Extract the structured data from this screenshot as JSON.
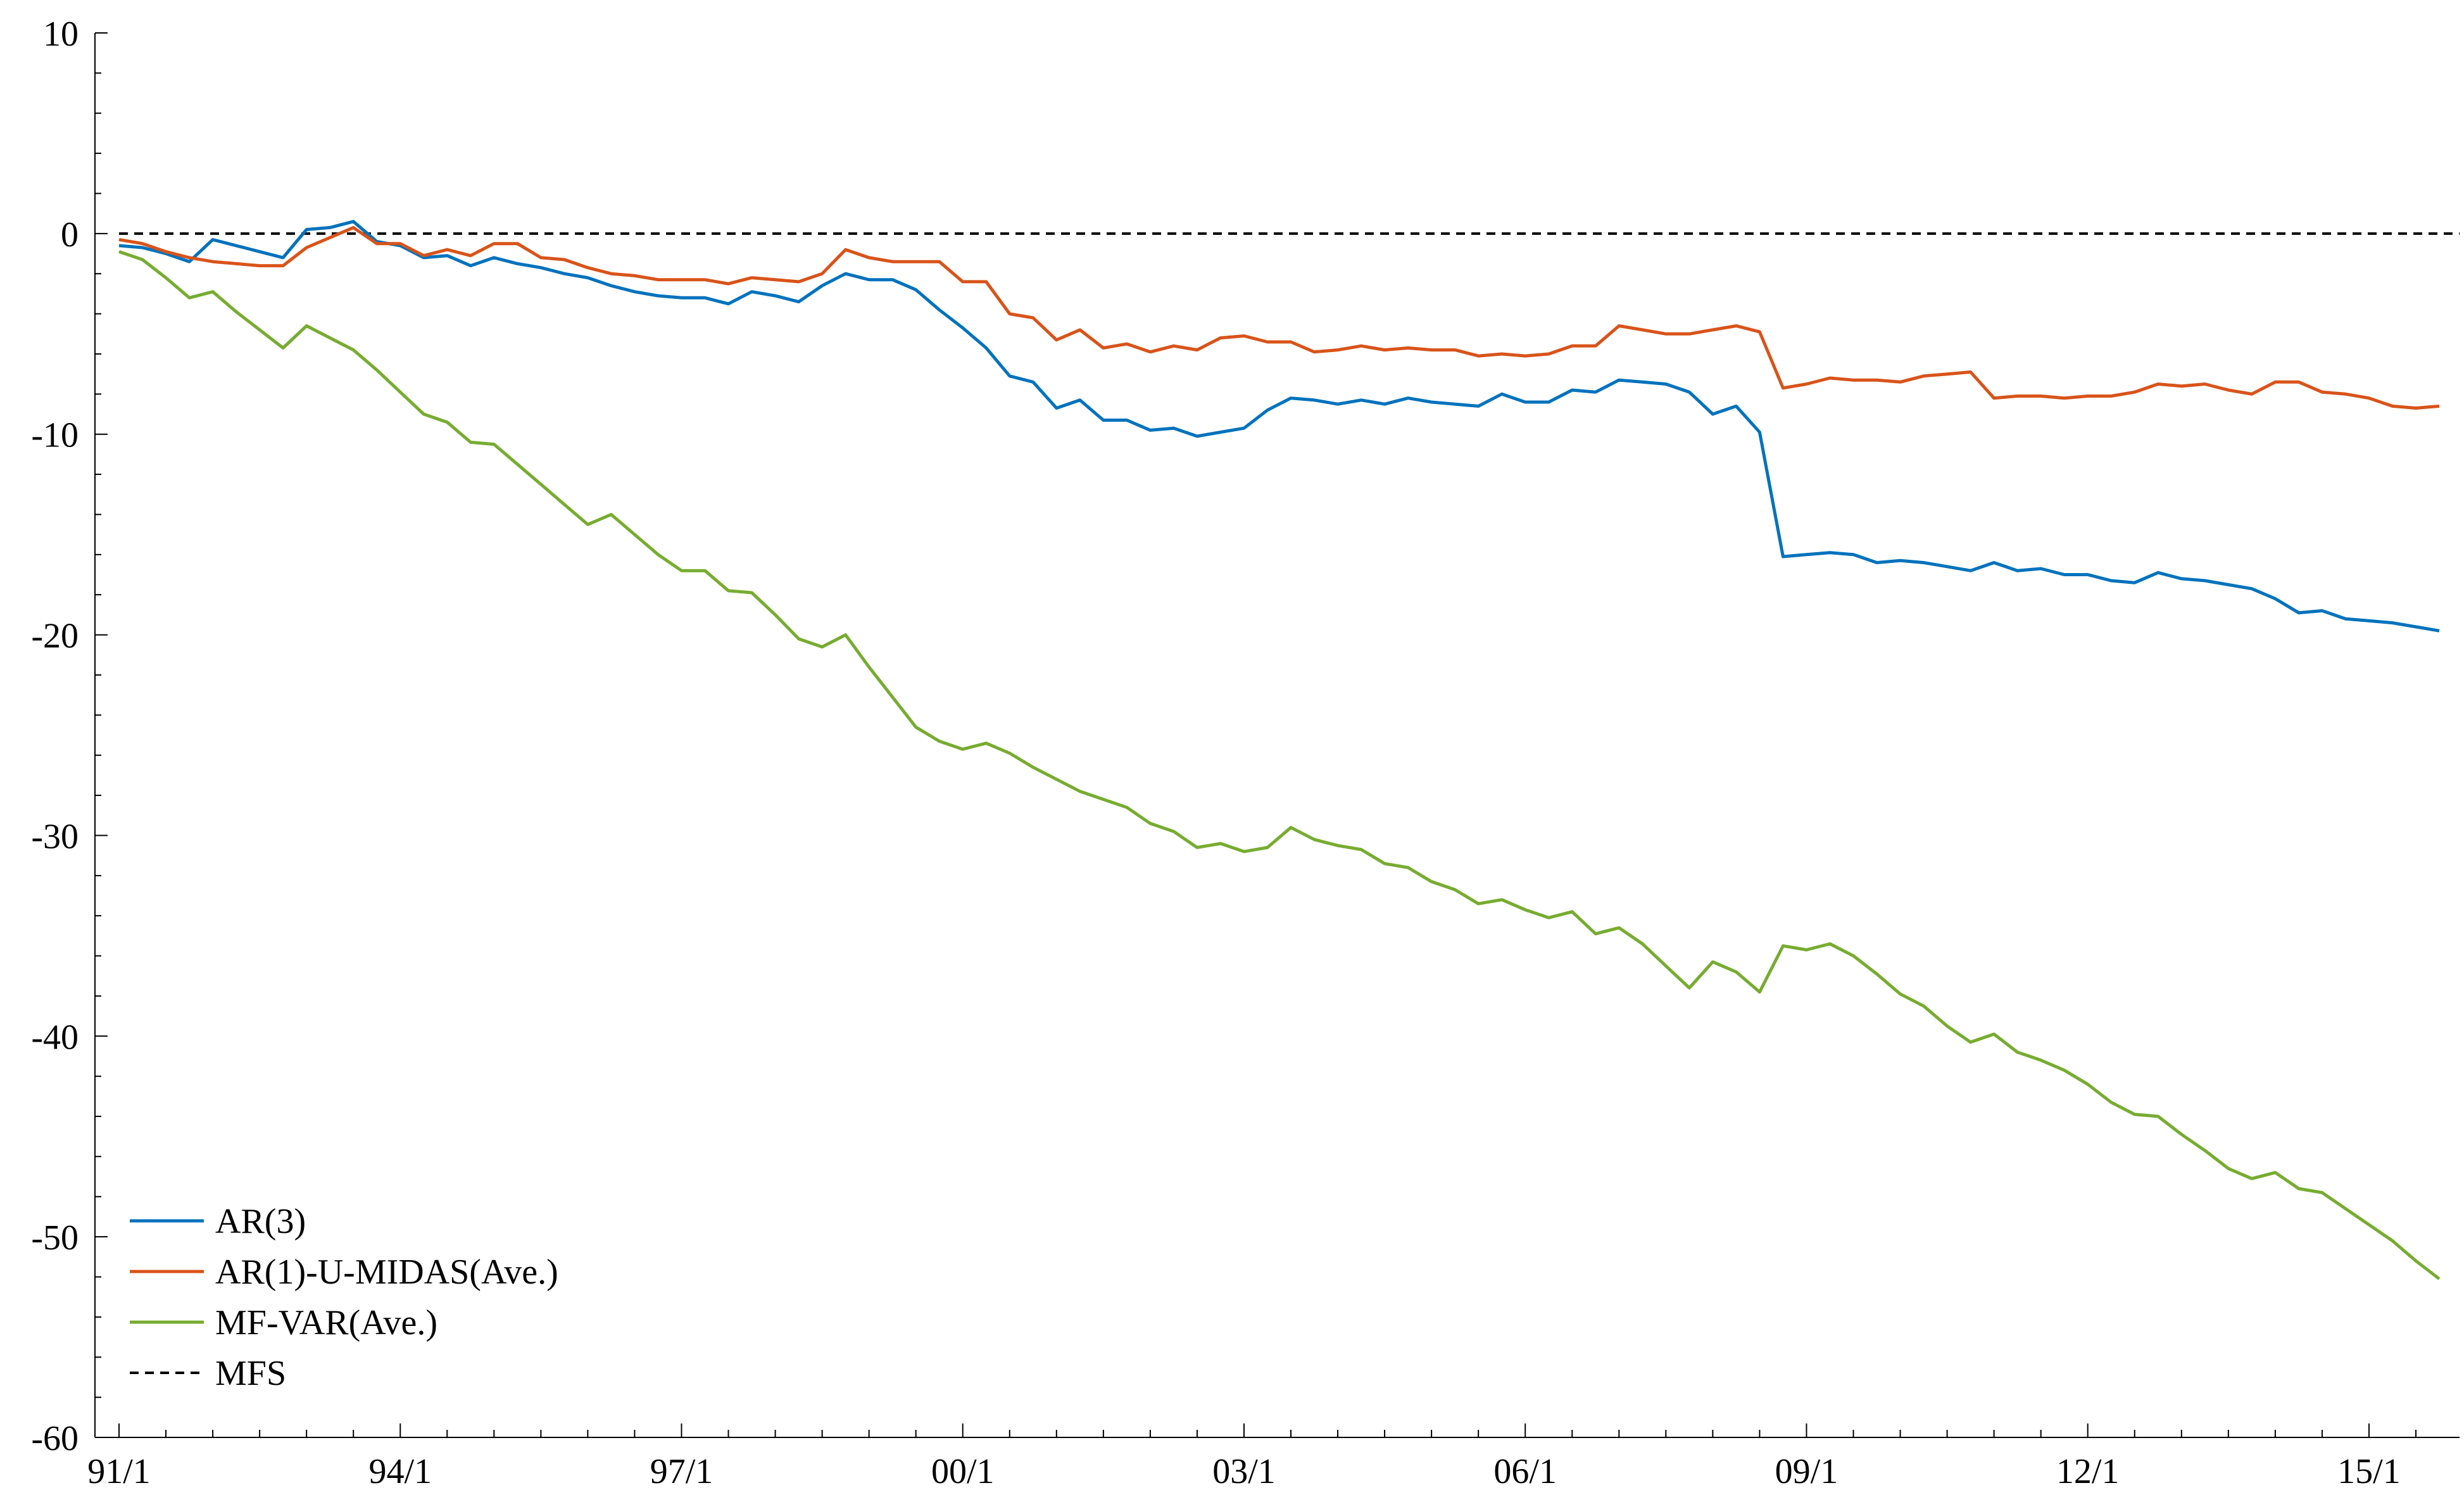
{
  "chart_data": {
    "type": "line",
    "title": "",
    "xlabel": "",
    "ylabel": "",
    "x": [
      "91/1",
      "91/2",
      "91/3",
      "91/4",
      "92/1",
      "92/2",
      "92/3",
      "92/4",
      "93/1",
      "93/2",
      "93/3",
      "93/4",
      "94/1",
      "94/2",
      "94/3",
      "94/4",
      "95/1",
      "95/2",
      "95/3",
      "95/4",
      "96/1",
      "96/2",
      "96/3",
      "96/4",
      "97/1",
      "97/2",
      "97/3",
      "97/4",
      "98/1",
      "98/2",
      "98/3",
      "98/4",
      "99/1",
      "99/2",
      "99/3",
      "99/4",
      "00/1",
      "00/2",
      "00/3",
      "00/4",
      "01/1",
      "01/2",
      "01/3",
      "01/4",
      "02/1",
      "02/2",
      "02/3",
      "02/4",
      "03/1",
      "03/2",
      "03/3",
      "03/4",
      "04/1",
      "04/2",
      "04/3",
      "04/4",
      "05/1",
      "05/2",
      "05/3",
      "05/4",
      "06/1",
      "06/2",
      "06/3",
      "06/4",
      "07/1",
      "07/2",
      "07/3",
      "07/4",
      "08/1",
      "08/2",
      "08/3",
      "08/4",
      "09/1",
      "09/2",
      "09/3",
      "09/4",
      "10/1",
      "10/2",
      "10/3",
      "10/4",
      "11/1",
      "11/2",
      "11/3",
      "11/4",
      "12/1",
      "12/2",
      "12/3",
      "12/4",
      "13/1",
      "13/2",
      "13/3",
      "13/4",
      "14/1",
      "14/2",
      "14/3",
      "14/4",
      "15/1",
      "15/2",
      "15/3",
      "15/4"
    ],
    "x_tick_labels": [
      "91/1",
      "94/1",
      "97/1",
      "00/1",
      "03/1",
      "06/1",
      "09/1",
      "12/1",
      "15/1"
    ],
    "y_tick_labels": [
      "10",
      "0",
      "-10",
      "-20",
      "-30",
      "-40",
      "-50",
      "-60"
    ],
    "ylim": [
      -60,
      10
    ],
    "y_ticks": [
      10,
      0,
      -10,
      -20,
      -30,
      -40,
      -50,
      -60
    ],
    "grid": false,
    "legend_position": "bottom-left",
    "series": [
      {
        "name": "AR(3)",
        "color": "#0072BD",
        "style": "solid",
        "values": [
          -0.6,
          -0.7,
          -1.0,
          -1.4,
          -0.3,
          -0.6,
          -0.9,
          -1.2,
          0.2,
          0.3,
          0.6,
          -0.4,
          -0.6,
          -1.2,
          -1.1,
          -1.6,
          -1.2,
          -1.5,
          -1.7,
          -2.0,
          -2.2,
          -2.6,
          -2.9,
          -3.1,
          -3.2,
          -3.2,
          -3.5,
          -2.9,
          -3.1,
          -3.4,
          -2.6,
          -2.0,
          -2.3,
          -2.3,
          -2.8,
          -3.8,
          -4.7,
          -5.7,
          -7.1,
          -7.4,
          -8.7,
          -8.3,
          -9.3,
          -9.3,
          -9.8,
          -9.7,
          -10.1,
          -9.9,
          -9.7,
          -8.8,
          -8.2,
          -8.3,
          -8.5,
          -8.3,
          -8.5,
          -8.2,
          -8.4,
          -8.5,
          -8.6,
          -8.0,
          -8.4,
          -8.4,
          -7.8,
          -7.9,
          -7.3,
          -7.4,
          -7.5,
          -7.9,
          -9.0,
          -8.6,
          -9.9,
          -16.1,
          -16.0,
          -15.9,
          -16.0,
          -16.4,
          -16.3,
          -16.4,
          -16.6,
          -16.8,
          -16.4,
          -16.8,
          -16.7,
          -17.0,
          -17.0,
          -17.3,
          -17.4,
          -16.9,
          -17.2,
          -17.3,
          -17.5,
          -17.7,
          -18.2,
          -18.9,
          -18.8,
          -19.2,
          -19.3,
          -19.4,
          -19.6,
          -19.8
        ]
      },
      {
        "name": "AR(1)-U-MIDAS(Ave.)",
        "color": "#D95319",
        "style": "solid",
        "values": [
          -0.3,
          -0.5,
          -0.9,
          -1.2,
          -1.4,
          -1.5,
          -1.6,
          -1.6,
          -0.7,
          -0.2,
          0.3,
          -0.5,
          -0.5,
          -1.1,
          -0.8,
          -1.1,
          -0.5,
          -0.5,
          -1.2,
          -1.3,
          -1.7,
          -2.0,
          -2.1,
          -2.3,
          -2.3,
          -2.3,
          -2.5,
          -2.2,
          -2.3,
          -2.4,
          -2.0,
          -0.8,
          -1.2,
          -1.4,
          -1.4,
          -1.4,
          -2.4,
          -2.4,
          -4.0,
          -4.2,
          -5.3,
          -4.8,
          -5.7,
          -5.5,
          -5.9,
          -5.6,
          -5.8,
          -5.2,
          -5.1,
          -5.4,
          -5.4,
          -5.9,
          -5.8,
          -5.6,
          -5.8,
          -5.7,
          -5.8,
          -5.8,
          -6.1,
          -6.0,
          -6.1,
          -6.0,
          -5.6,
          -5.6,
          -4.6,
          -4.8,
          -5.0,
          -5.0,
          -4.8,
          -4.6,
          -4.9,
          -7.7,
          -7.5,
          -7.2,
          -7.3,
          -7.3,
          -7.4,
          -7.1,
          -7.0,
          -6.9,
          -8.2,
          -8.1,
          -8.1,
          -8.2,
          -8.1,
          -8.1,
          -7.9,
          -7.5,
          -7.6,
          -7.5,
          -7.8,
          -8.0,
          -7.4,
          -7.4,
          -7.9,
          -8.0,
          -8.2,
          -8.6,
          -8.7,
          -8.6
        ]
      },
      {
        "name": "MF-VAR(Ave.)",
        "color": "#77AC30",
        "style": "solid",
        "values": [
          -0.9,
          -1.3,
          -2.2,
          -3.2,
          -2.9,
          -3.9,
          -4.8,
          -5.7,
          -4.6,
          -5.2,
          -5.8,
          -6.8,
          -7.9,
          -9.0,
          -9.4,
          -10.4,
          -10.5,
          -11.5,
          -12.5,
          -13.5,
          -14.5,
          -14.0,
          -15.0,
          -16.0,
          -16.8,
          -16.8,
          -17.8,
          -17.9,
          -19.0,
          -20.2,
          -20.6,
          -20.0,
          -21.6,
          -23.1,
          -24.6,
          -25.3,
          -25.7,
          -25.4,
          -25.9,
          -26.6,
          -27.2,
          -27.8,
          -28.2,
          -28.6,
          -29.4,
          -29.8,
          -30.6,
          -30.4,
          -30.8,
          -30.6,
          -29.6,
          -30.2,
          -30.5,
          -30.7,
          -31.4,
          -31.6,
          -32.3,
          -32.7,
          -33.4,
          -33.2,
          -33.7,
          -34.1,
          -33.8,
          -34.9,
          -34.6,
          -35.4,
          -36.5,
          -37.6,
          -36.3,
          -36.8,
          -37.8,
          -35.5,
          -35.7,
          -35.4,
          -36.0,
          -36.9,
          -37.9,
          -38.5,
          -39.5,
          -40.3,
          -39.9,
          -40.8,
          -41.2,
          -41.7,
          -42.4,
          -43.3,
          -43.9,
          -44.0,
          -44.9,
          -45.7,
          -46.6,
          -47.1,
          -46.8,
          -47.6,
          -47.8,
          -48.6,
          -49.4,
          -50.2,
          -51.2,
          -52.1
        ]
      },
      {
        "name": "MFS",
        "color": "#000000",
        "style": "dashed",
        "values": [
          0,
          0,
          0,
          0,
          0,
          0,
          0,
          0,
          0,
          0,
          0,
          0,
          0,
          0,
          0,
          0,
          0,
          0,
          0,
          0,
          0,
          0,
          0,
          0,
          0,
          0,
          0,
          0,
          0,
          0,
          0,
          0,
          0,
          0,
          0,
          0,
          0,
          0,
          0,
          0,
          0,
          0,
          0,
          0,
          0,
          0,
          0,
          0,
          0,
          0,
          0,
          0,
          0,
          0,
          0,
          0,
          0,
          0,
          0,
          0,
          0,
          0,
          0,
          0,
          0,
          0,
          0,
          0,
          0,
          0,
          0,
          0,
          0,
          0,
          0,
          0,
          0,
          0,
          0,
          0,
          0,
          0,
          0,
          0,
          0,
          0,
          0,
          0,
          0,
          0,
          0,
          0,
          0,
          0,
          0,
          0,
          0,
          0,
          0,
          0
        ]
      }
    ]
  }
}
